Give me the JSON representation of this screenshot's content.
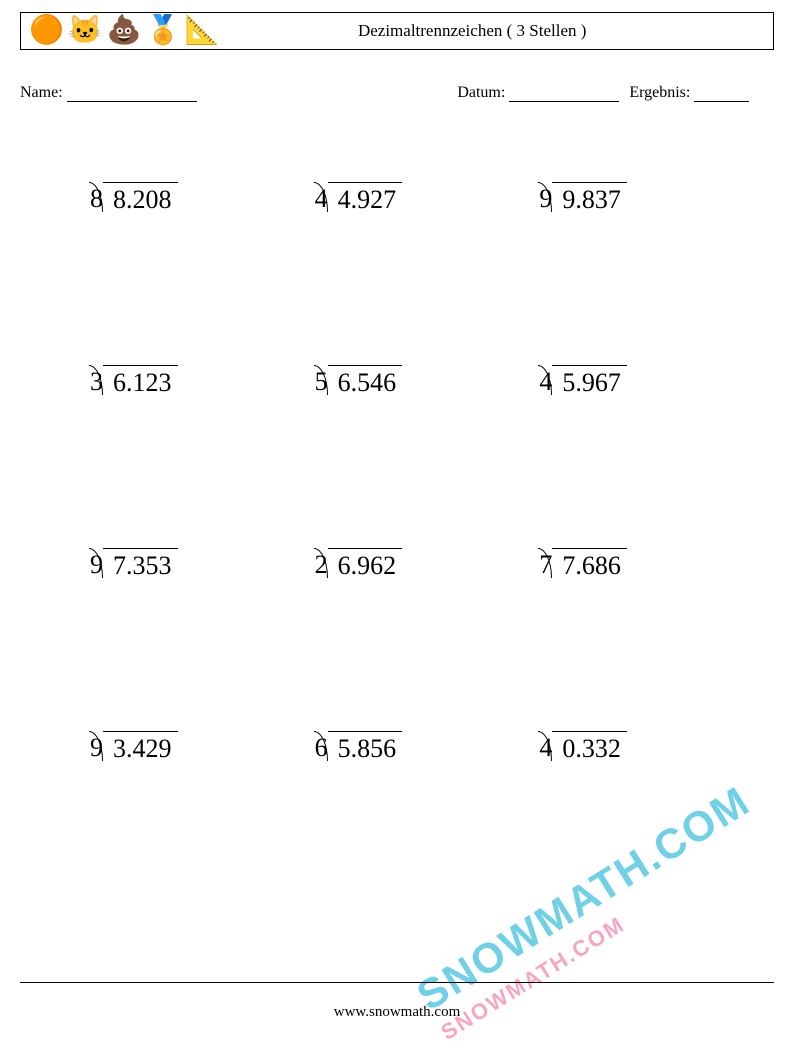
{
  "header": {
    "icons": [
      "🟠",
      "🐱",
      "💩",
      "🏅",
      "📐"
    ],
    "title": "Dezimaltrennzeichen ( 3 Stellen )"
  },
  "info": {
    "name_label": "Name:",
    "datum_label": "Datum:",
    "ergebnis_label": "Ergebnis:"
  },
  "style": {
    "problem_fontsize": 26,
    "text_color": "#000000",
    "rows": 4,
    "cols": 3
  },
  "problems": [
    {
      "divisor": "8",
      "dividend": "8.208"
    },
    {
      "divisor": "4",
      "dividend": "4.927"
    },
    {
      "divisor": "9",
      "dividend": "9.837"
    },
    {
      "divisor": "3",
      "dividend": "6.123"
    },
    {
      "divisor": "5",
      "dividend": "6.546"
    },
    {
      "divisor": "4",
      "dividend": "5.967"
    },
    {
      "divisor": "9",
      "dividend": "7.353"
    },
    {
      "divisor": "2",
      "dividend": "6.962"
    },
    {
      "divisor": "7",
      "dividend": "7.686"
    },
    {
      "divisor": "9",
      "dividend": "3.429"
    },
    {
      "divisor": "6",
      "dividend": "5.856"
    },
    {
      "divisor": "4",
      "dividend": "0.332"
    }
  ],
  "watermark": {
    "line1": "SNOWMATH.COM",
    "line2": "SNOWMATH.COM",
    "color1": "#6fd0e6",
    "color2": "#f7a6c0"
  },
  "footer": {
    "url": "www.snowmath.com"
  }
}
